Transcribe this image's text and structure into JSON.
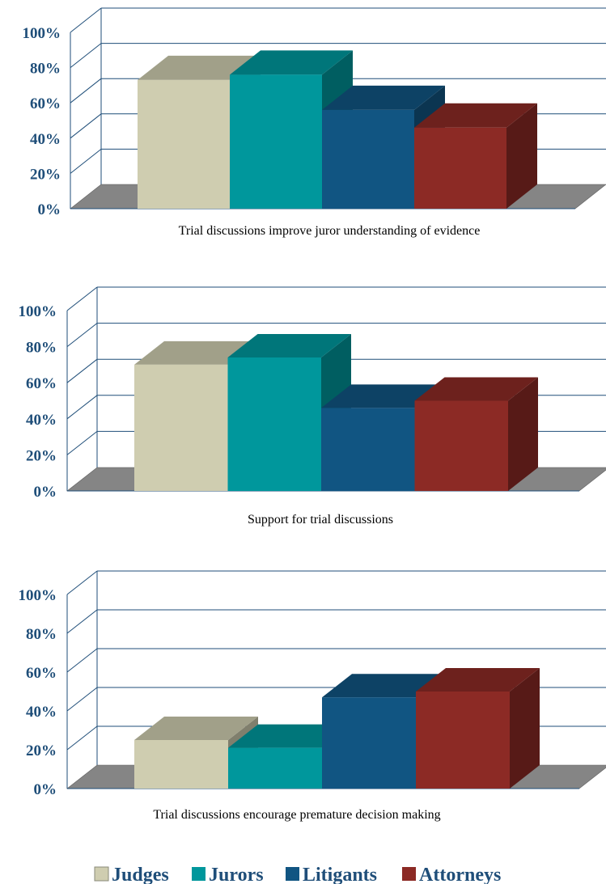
{
  "colors": {
    "Judges": "#cfcdb0",
    "Jurors": "#00979c",
    "Litigants": "#115582",
    "Attorneys": "#8c2a25",
    "floor": "#858585",
    "gridline": "#1f4e79",
    "tick_text": "#1f4e79"
  },
  "legend": {
    "items": [
      {
        "label": "Judges"
      },
      {
        "label": "Jurors"
      },
      {
        "label": "Litigants"
      },
      {
        "label": "Attorneys"
      }
    ]
  },
  "chart_data": [
    {
      "type": "bar",
      "title": "Trial discussions improve juror understanding of evidence",
      "categories": [
        "Judges",
        "Jurors",
        "Litigants",
        "Attorneys"
      ],
      "values": [
        0.73,
        0.76,
        0.56,
        0.46
      ],
      "ylim": [
        0,
        1
      ],
      "yticks": [
        "0%",
        "20%",
        "40%",
        "60%",
        "80%",
        "100%"
      ],
      "grid": true,
      "legend_position": "bottom"
    },
    {
      "type": "bar",
      "title": "Support for trial discussions",
      "categories": [
        "Judges",
        "Jurors",
        "Litigants",
        "Attorneys"
      ],
      "values": [
        0.7,
        0.74,
        0.46,
        0.5
      ],
      "ylim": [
        0,
        1
      ],
      "yticks": [
        "0%",
        "20%",
        "40%",
        "60%",
        "80%",
        "100%"
      ],
      "grid": true,
      "legend_position": "bottom"
    },
    {
      "type": "bar",
      "title": "Trial discussions encourage premature decision making",
      "categories": [
        "Judges",
        "Jurors",
        "Litigants",
        "Attorneys"
      ],
      "values": [
        0.25,
        0.21,
        0.47,
        0.5
      ],
      "ylim": [
        0,
        1
      ],
      "yticks": [
        "0%",
        "20%",
        "40%",
        "60%",
        "80%",
        "100%"
      ],
      "grid": true,
      "legend_position": "bottom"
    }
  ]
}
